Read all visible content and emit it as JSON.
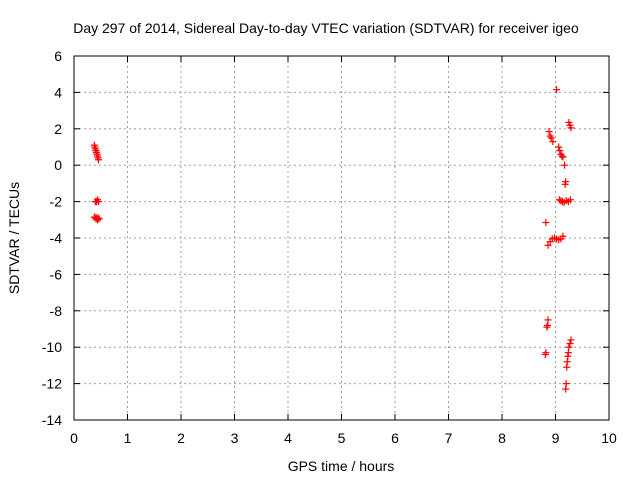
{
  "chart_data": {
    "type": "scatter",
    "title": "Day 297 of 2014, Sidereal Day-to-day VTEC variation (SDTVAR) for receiver igeo",
    "xlabel": "GPS time / hours",
    "ylabel": "SDTVAR / TECUs",
    "xlim": [
      0,
      10
    ],
    "ylim": [
      -14,
      6
    ],
    "xticks": [
      0,
      1,
      2,
      3,
      4,
      5,
      6,
      7,
      8,
      9,
      10
    ],
    "yticks": [
      -14,
      -12,
      -10,
      -8,
      -6,
      -4,
      -2,
      0,
      2,
      4,
      6
    ],
    "grid": true,
    "marker": "+",
    "color": "#ff0000",
    "series": [
      {
        "name": "SDTVAR",
        "x": [
          0.38,
          0.39,
          0.4,
          0.41,
          0.42,
          0.43,
          0.44,
          0.45,
          0.46,
          0.4,
          0.42,
          0.44,
          0.46,
          0.39,
          0.42,
          0.45,
          0.38,
          0.41,
          0.44,
          0.47,
          9.02,
          8.88,
          8.9,
          8.92,
          8.95,
          9.06,
          9.08,
          9.1,
          9.12,
          9.14,
          9.17,
          9.25,
          9.27,
          9.29,
          9.19,
          9.18,
          9.07,
          9.1,
          9.13,
          9.16,
          9.2,
          9.24,
          9.28,
          8.82,
          8.86,
          8.9,
          8.94,
          8.98,
          9.02,
          9.06,
          9.1,
          9.14,
          8.86,
          8.85,
          8.84,
          8.82,
          8.81,
          9.2,
          9.19,
          9.21,
          9.22,
          9.23,
          9.24,
          9.25,
          9.27,
          9.29
        ],
        "y": [
          1.1,
          1.0,
          0.9,
          0.8,
          0.7,
          0.6,
          0.5,
          0.4,
          0.3,
          -2.0,
          -2.0,
          -1.9,
          -2.0,
          -2.85,
          -2.9,
          -2.9,
          -2.85,
          -2.95,
          -3.0,
          -2.95,
          4.15,
          1.85,
          1.6,
          1.5,
          1.3,
          1.0,
          0.8,
          0.6,
          0.5,
          0.45,
          0.0,
          2.35,
          2.2,
          2.05,
          -0.9,
          -1.05,
          -1.9,
          -1.95,
          -2.0,
          -2.05,
          -1.95,
          -2.0,
          -1.9,
          -3.15,
          -4.4,
          -4.2,
          -4.05,
          -4.0,
          -4.05,
          -4.1,
          -4.05,
          -3.9,
          -8.5,
          -8.8,
          -8.9,
          -10.3,
          -10.4,
          -12.0,
          -12.3,
          -11.1,
          -10.8,
          -10.5,
          -10.3,
          -10.0,
          -9.8,
          -9.6
        ]
      }
    ]
  }
}
